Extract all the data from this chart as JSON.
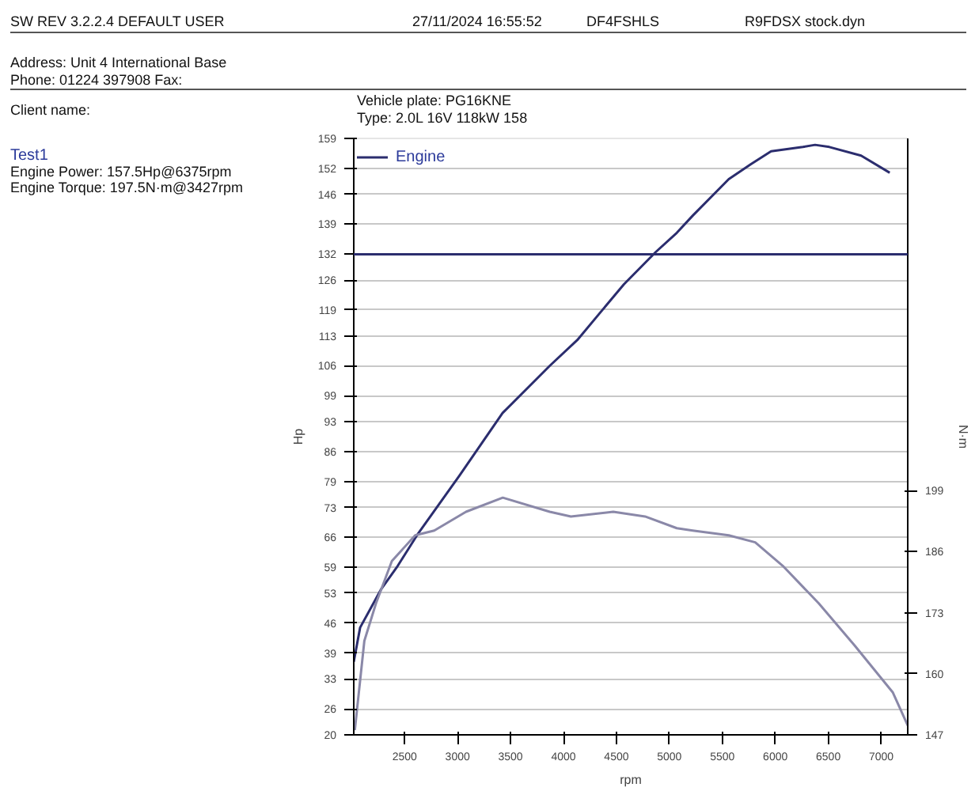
{
  "chart_data": {
    "type": "line",
    "xlabel": "rpm",
    "ylabel": "Hp",
    "y2label": "N·m",
    "annotations": [
      "SW REV 3.2.2.4  DEFAULT USER",
      "27/11/2024 16:55:52",
      "DF4FSHLS",
      "R9FDSX stock.dyn",
      "Address: Unit 4 International Base",
      "Phone: 01224 397908 Fax:",
      "Client name:",
      "Vehicle plate: PG16KNE",
      "Type: 2.0L 16V 118kW 158",
      "Test1",
      "Engine Power: 157.5Hp@6375rpm",
      "Engine Torque: 197.5N·m@3427rpm"
    ],
    "series": [
      {
        "name": "Engine",
        "color": "#2b2d6e",
        "x": [
          2020,
          2080,
          2280,
          2425,
          2630,
          3020,
          3425,
          3870,
          4130,
          4570,
          4870,
          5070,
          5220,
          5560,
          5770,
          5960,
          6260,
          6375,
          6510,
          6810,
          7080
        ],
        "values": [
          37,
          45,
          54,
          59,
          67,
          80.5,
          95,
          106,
          112,
          125,
          132.5,
          137,
          141,
          149.5,
          153,
          156,
          157,
          157.5,
          157,
          155,
          151
        ]
      },
      {
        "color": "#8a88a8",
        "axis": "y2",
        "x": [
          2030,
          2120,
          2230,
          2380,
          2600,
          2780,
          3080,
          3427,
          3870,
          4070,
          4470,
          4770,
          5070,
          5220,
          5560,
          5810,
          6070,
          6410,
          6750,
          7110,
          7250
        ],
        "values": [
          148,
          167,
          175,
          184,
          189.5,
          190.5,
          194.5,
          197.5,
          194.5,
          193.5,
          194.5,
          193.5,
          191,
          190.5,
          189.5,
          188,
          183,
          175,
          166,
          156,
          149
        ]
      }
    ],
    "ref_lines": [
      {
        "axis": "y",
        "value": 132,
        "color": "#2b2d6e"
      }
    ],
    "xlim": [
      2020,
      7250
    ],
    "xticks": [
      2500,
      3000,
      3500,
      4000,
      4500,
      5000,
      5500,
      6000,
      6500,
      7000
    ],
    "ylim": [
      20,
      159
    ],
    "yticks": [
      20,
      26,
      33,
      39,
      46,
      53,
      59,
      66,
      73,
      79,
      86,
      93,
      99,
      106,
      113,
      119,
      126,
      132,
      139,
      146,
      152,
      159
    ],
    "y2lim": [
      147,
      274
    ],
    "y2ticks": [
      147,
      160,
      173,
      186,
      199
    ],
    "grid": "y",
    "legend": "top left",
    "marker": "none",
    "line_style": "solid"
  }
}
